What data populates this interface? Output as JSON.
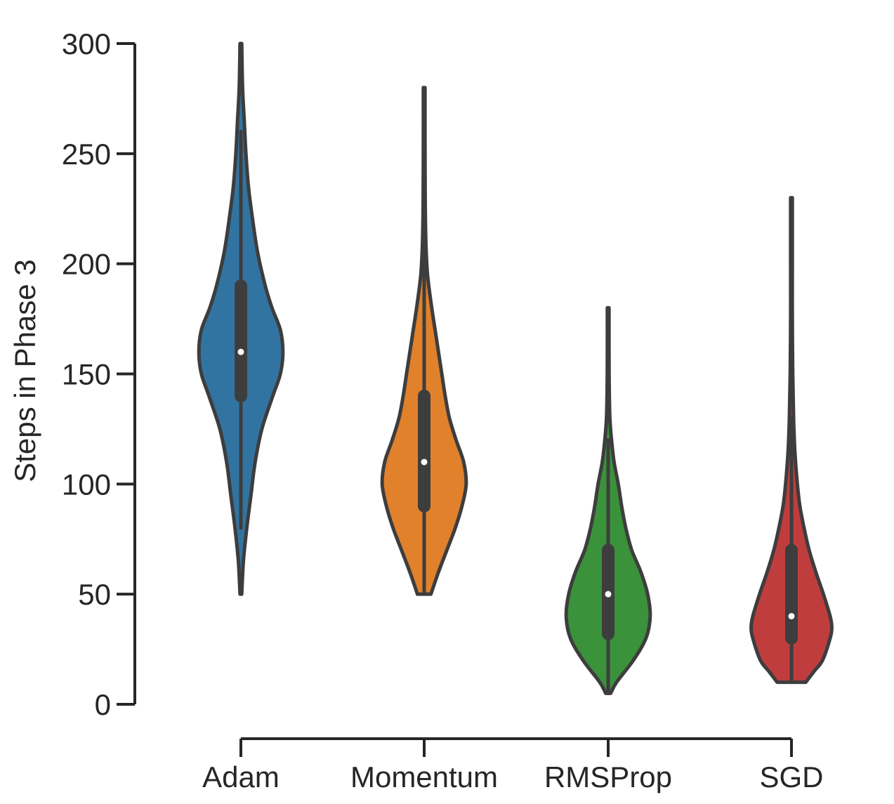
{
  "chart_data": {
    "type": "violin",
    "categories": [
      "Adam",
      "Momentum",
      "RMSProp",
      "SGD"
    ],
    "ylabel": "Steps in Phase 3",
    "xlabel": "",
    "ylim": [
      0,
      300
    ],
    "yticks": [
      0,
      50,
      100,
      150,
      200,
      250,
      300
    ],
    "grid": false,
    "colors": {
      "Adam": "#3274a1",
      "Momentum": "#e1812c",
      "RMSProp": "#3a923a",
      "SGD": "#c03d3e",
      "inner": "#3d3d3d",
      "axis": "#262626"
    },
    "violins": [
      {
        "name": "Adam",
        "min": 50,
        "q1": 140,
        "median": 160,
        "q3": 190,
        "max": 300,
        "whisker_low": 80,
        "whisker_high": 260,
        "profile": [
          [
            50,
            0.01
          ],
          [
            65,
            0.03
          ],
          [
            80,
            0.07
          ],
          [
            95,
            0.12
          ],
          [
            110,
            0.17
          ],
          [
            125,
            0.25
          ],
          [
            140,
            0.38
          ],
          [
            150,
            0.47
          ],
          [
            160,
            0.5
          ],
          [
            170,
            0.47
          ],
          [
            180,
            0.37
          ],
          [
            190,
            0.29
          ],
          [
            205,
            0.2
          ],
          [
            220,
            0.14
          ],
          [
            235,
            0.09
          ],
          [
            250,
            0.06
          ],
          [
            265,
            0.04
          ],
          [
            280,
            0.02
          ],
          [
            300,
            0.01
          ]
        ]
      },
      {
        "name": "Momentum",
        "min": 50,
        "q1": 90,
        "median": 110,
        "q3": 140,
        "max": 280,
        "whisker_low": 50,
        "whisker_high": 210,
        "profile": [
          [
            50,
            0.08
          ],
          [
            60,
            0.17
          ],
          [
            70,
            0.27
          ],
          [
            80,
            0.37
          ],
          [
            90,
            0.45
          ],
          [
            100,
            0.5
          ],
          [
            110,
            0.47
          ],
          [
            120,
            0.38
          ],
          [
            130,
            0.3
          ],
          [
            140,
            0.25
          ],
          [
            150,
            0.21
          ],
          [
            160,
            0.17
          ],
          [
            170,
            0.13
          ],
          [
            180,
            0.09
          ],
          [
            195,
            0.04
          ],
          [
            210,
            0.02
          ],
          [
            230,
            0.012
          ],
          [
            255,
            0.01
          ],
          [
            280,
            0.01
          ]
        ]
      },
      {
        "name": "RMSProp",
        "min": 5,
        "q1": 32,
        "median": 50,
        "q3": 70,
        "max": 180,
        "whisker_low": 5,
        "whisker_high": 120,
        "profile": [
          [
            5,
            0.03
          ],
          [
            10,
            0.1
          ],
          [
            20,
            0.3
          ],
          [
            30,
            0.45
          ],
          [
            40,
            0.5
          ],
          [
            50,
            0.47
          ],
          [
            60,
            0.39
          ],
          [
            70,
            0.28
          ],
          [
            80,
            0.21
          ],
          [
            90,
            0.16
          ],
          [
            100,
            0.12
          ],
          [
            110,
            0.07
          ],
          [
            120,
            0.04
          ],
          [
            130,
            0.02
          ],
          [
            145,
            0.012
          ],
          [
            160,
            0.01
          ],
          [
            180,
            0.01
          ]
        ]
      },
      {
        "name": "SGD",
        "min": 10,
        "q1": 30,
        "median": 40,
        "q3": 70,
        "max": 230,
        "whisker_low": 10,
        "whisker_high": 130,
        "profile": [
          [
            10,
            0.17
          ],
          [
            15,
            0.27
          ],
          [
            20,
            0.37
          ],
          [
            30,
            0.46
          ],
          [
            35,
            0.48
          ],
          [
            40,
            0.46
          ],
          [
            50,
            0.38
          ],
          [
            60,
            0.29
          ],
          [
            70,
            0.21
          ],
          [
            80,
            0.15
          ],
          [
            90,
            0.1
          ],
          [
            100,
            0.07
          ],
          [
            115,
            0.04
          ],
          [
            130,
            0.025
          ],
          [
            150,
            0.015
          ],
          [
            175,
            0.01
          ],
          [
            200,
            0.01
          ],
          [
            230,
            0.01
          ]
        ]
      }
    ]
  }
}
